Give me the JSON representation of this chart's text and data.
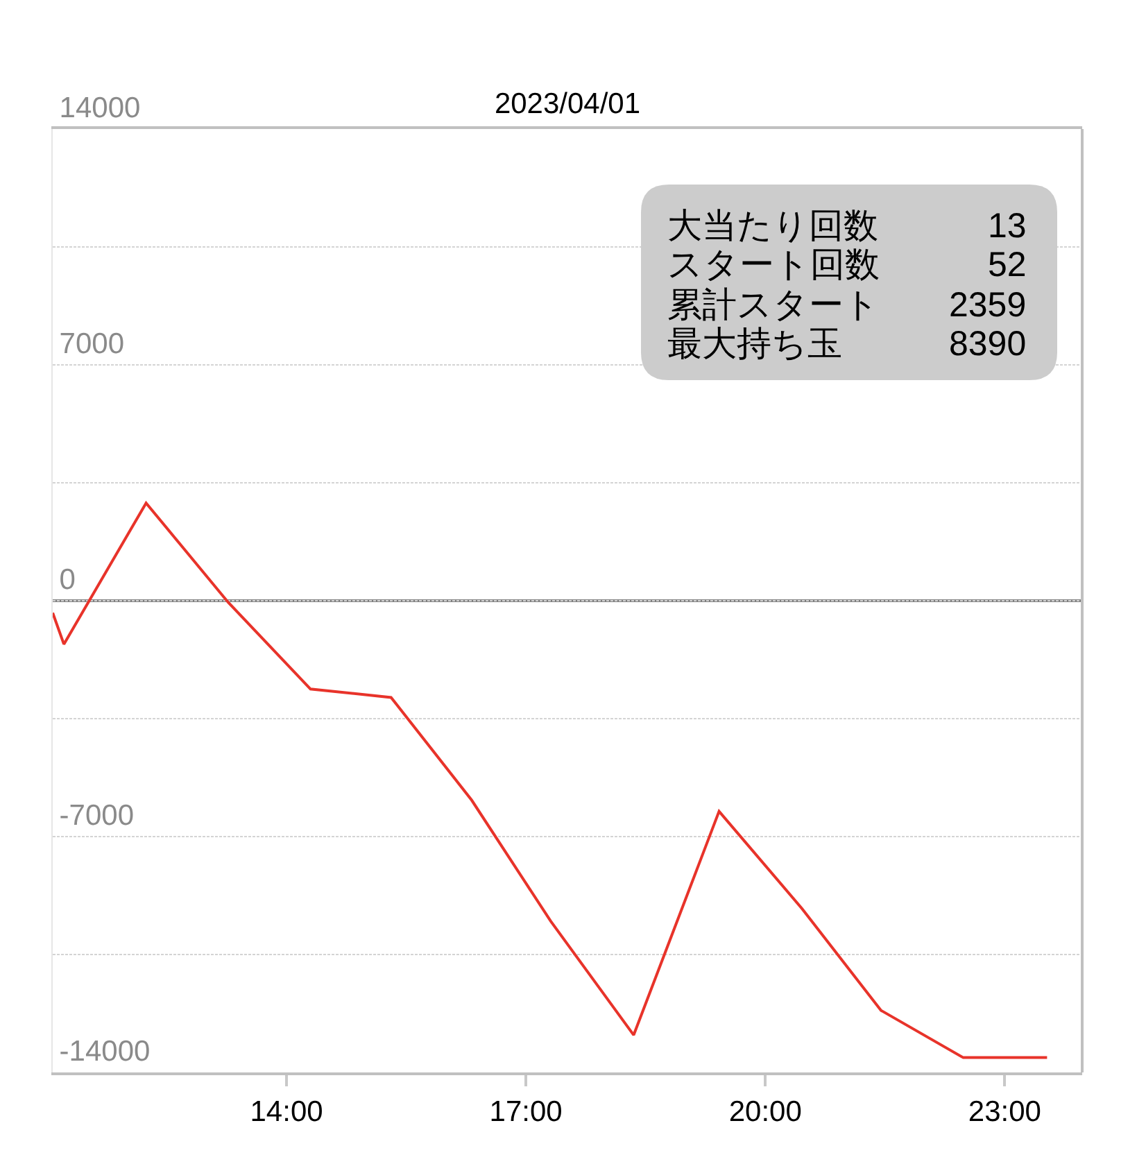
{
  "chart_data": {
    "type": "line",
    "title": "2023/04/01",
    "x": [
      11.07,
      11.21,
      12.24,
      13.27,
      14.3,
      15.31,
      16.32,
      17.31,
      18.35,
      19.42,
      20.46,
      21.45,
      22.48,
      23.53
    ],
    "series": [
      {
        "color": "#e8332a",
        "values": [
          -360,
          -1290,
          2900,
          -50,
          -2620,
          -2870,
          -5920,
          -9510,
          -12890,
          -6250,
          -9140,
          -12160,
          -13560,
          -13560
        ]
      }
    ],
    "xlim": [
      11.07,
      23.97
    ],
    "xticks": [
      {
        "value": 14,
        "label": "14:00"
      },
      {
        "value": 17,
        "label": "17:00"
      },
      {
        "value": 20,
        "label": "20:00"
      },
      {
        "value": 23,
        "label": "23:00"
      }
    ],
    "ylim": [
      -14000,
      14000
    ],
    "yticks": [
      -14000,
      {
        "value": -10500,
        "label": null
      },
      -7000,
      {
        "value": -3500,
        "label": null
      },
      0,
      {
        "value": 3500,
        "label": null
      },
      7000,
      {
        "value": 10500,
        "label": null
      },
      14000
    ],
    "grid": "y",
    "marker": "none",
    "line_style": "solid",
    "ref_lines": [
      {
        "axis": "y",
        "value": 0,
        "color": "#808080"
      }
    ],
    "annotations": [
      "大当たり回数",
      "13",
      "スタート回数",
      "52",
      "累計スタート",
      "2359",
      "最大持ち玉",
      "8390"
    ]
  }
}
